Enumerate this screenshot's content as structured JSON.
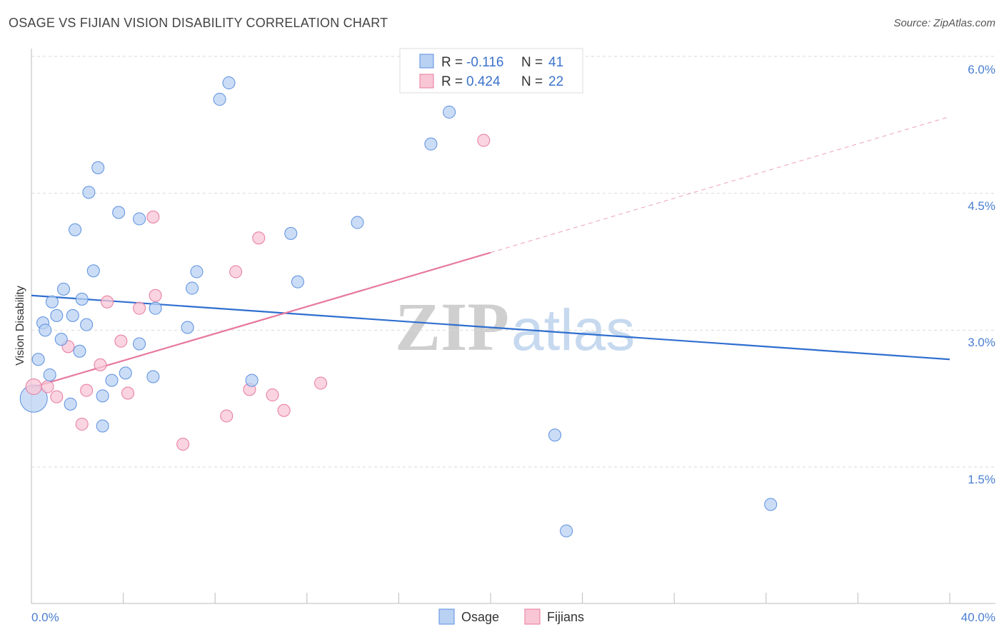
{
  "title": "OSAGE VS FIJIAN VISION DISABILITY CORRELATION CHART",
  "source": "Source: ZipAtlas.com",
  "watermark": {
    "zip": "ZIP",
    "atlas": "atlas"
  },
  "colors": {
    "osage": "#5b8fe0",
    "osage_fill": "#b9d1f3",
    "fijians": "#e7799d",
    "fijians_fill": "#f8c6d5",
    "tick_text": "#4a7fd0",
    "grid": "#d9d9d9"
  },
  "legend": {
    "osage": {
      "r_label": "R = ",
      "r_value": "-0.116",
      "n_label": "N = ",
      "n_value": "41"
    },
    "fijians": {
      "r_label": "R = ",
      "r_value": "0.424",
      "n_label": "N = ",
      "n_value": "22"
    }
  },
  "bottom_legend": {
    "osage": "Osage",
    "fijians": "Fijians"
  },
  "chart_data": {
    "type": "scatter",
    "title": "OSAGE VS FIJIAN VISION DISABILITY CORRELATION CHART",
    "xlabel": "",
    "ylabel": "Vision Disability",
    "xlim": [
      0,
      40
    ],
    "ylim": [
      0.0,
      6.2
    ],
    "x_tick_labels": [
      "0.0%",
      "40.0%"
    ],
    "y_ticks": [
      1.5,
      3.0,
      4.5,
      6.0
    ],
    "y_tick_labels": [
      "1.5%",
      "3.0%",
      "4.5%",
      "6.0%"
    ],
    "grid": true,
    "series": [
      {
        "name": "Osage",
        "points": [
          [
            0.1,
            2.25
          ],
          [
            0.3,
            2.68
          ],
          [
            0.5,
            3.08
          ],
          [
            0.6,
            3.0
          ],
          [
            0.8,
            2.51
          ],
          [
            0.9,
            3.31
          ],
          [
            1.1,
            3.16
          ],
          [
            1.3,
            2.9
          ],
          [
            1.4,
            3.45
          ],
          [
            1.7,
            2.19
          ],
          [
            1.8,
            3.16
          ],
          [
            1.9,
            4.1
          ],
          [
            2.1,
            2.77
          ],
          [
            2.2,
            3.34
          ],
          [
            2.4,
            3.06
          ],
          [
            2.5,
            4.51
          ],
          [
            2.7,
            3.65
          ],
          [
            2.9,
            4.78
          ],
          [
            3.1,
            2.28
          ],
          [
            3.1,
            1.95
          ],
          [
            3.5,
            2.45
          ],
          [
            3.8,
            4.29
          ],
          [
            4.1,
            2.53
          ],
          [
            4.7,
            2.85
          ],
          [
            4.7,
            4.22
          ],
          [
            5.3,
            2.49
          ],
          [
            5.4,
            3.24
          ],
          [
            6.8,
            3.03
          ],
          [
            7.0,
            3.46
          ],
          [
            7.2,
            3.64
          ],
          [
            8.2,
            5.53
          ],
          [
            8.6,
            5.71
          ],
          [
            9.6,
            2.45
          ],
          [
            11.3,
            4.06
          ],
          [
            11.6,
            3.53
          ],
          [
            14.2,
            4.18
          ],
          [
            17.4,
            5.04
          ],
          [
            18.2,
            5.39
          ],
          [
            22.8,
            1.85
          ],
          [
            23.3,
            0.8
          ],
          [
            32.2,
            1.09
          ]
        ],
        "trend": {
          "x": [
            0,
            40
          ],
          "y": [
            3.38,
            2.68
          ]
        }
      },
      {
        "name": "Fijians",
        "points": [
          [
            0.1,
            2.38
          ],
          [
            0.7,
            2.38
          ],
          [
            1.1,
            2.27
          ],
          [
            1.6,
            2.82
          ],
          [
            2.2,
            1.97
          ],
          [
            2.4,
            2.34
          ],
          [
            3.0,
            2.62
          ],
          [
            3.3,
            3.31
          ],
          [
            3.9,
            2.88
          ],
          [
            4.2,
            2.31
          ],
          [
            4.7,
            3.24
          ],
          [
            5.3,
            4.24
          ],
          [
            5.4,
            3.38
          ],
          [
            6.6,
            1.75
          ],
          [
            8.5,
            2.06
          ],
          [
            8.9,
            3.64
          ],
          [
            9.5,
            2.35
          ],
          [
            9.9,
            4.01
          ],
          [
            10.5,
            2.29
          ],
          [
            11.0,
            2.12
          ],
          [
            12.6,
            2.42
          ],
          [
            19.7,
            5.08
          ]
        ],
        "trend": {
          "x": [
            0,
            20
          ],
          "y": [
            2.37,
            3.85
          ]
        },
        "trend_extension": {
          "x": [
            20,
            40
          ],
          "y": [
            3.85,
            5.34
          ]
        }
      }
    ]
  }
}
